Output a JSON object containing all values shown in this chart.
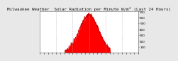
{
  "title": "Milwaukee Weather  Solar Radiation per Minute W/m² (Last 24 Hours)",
  "bg_color": "#e8e8e8",
  "plot_bg_color": "#ffffff",
  "fill_color": "#ff0000",
  "line_color": "#cc0000",
  "grid_color": "#aaaaaa",
  "ylim": [
    0,
    700
  ],
  "yticks": [
    100,
    200,
    300,
    400,
    500,
    600,
    700
  ],
  "xlim": [
    0,
    1440
  ],
  "num_points": 1440,
  "peak_minute": 720,
  "peak_value": 640,
  "start_minute": 370,
  "end_minute": 1030,
  "title_fontsize": 4.2,
  "tick_fontsize": 3.0,
  "grid_alpha": 0.7,
  "grid_lw": 0.4
}
